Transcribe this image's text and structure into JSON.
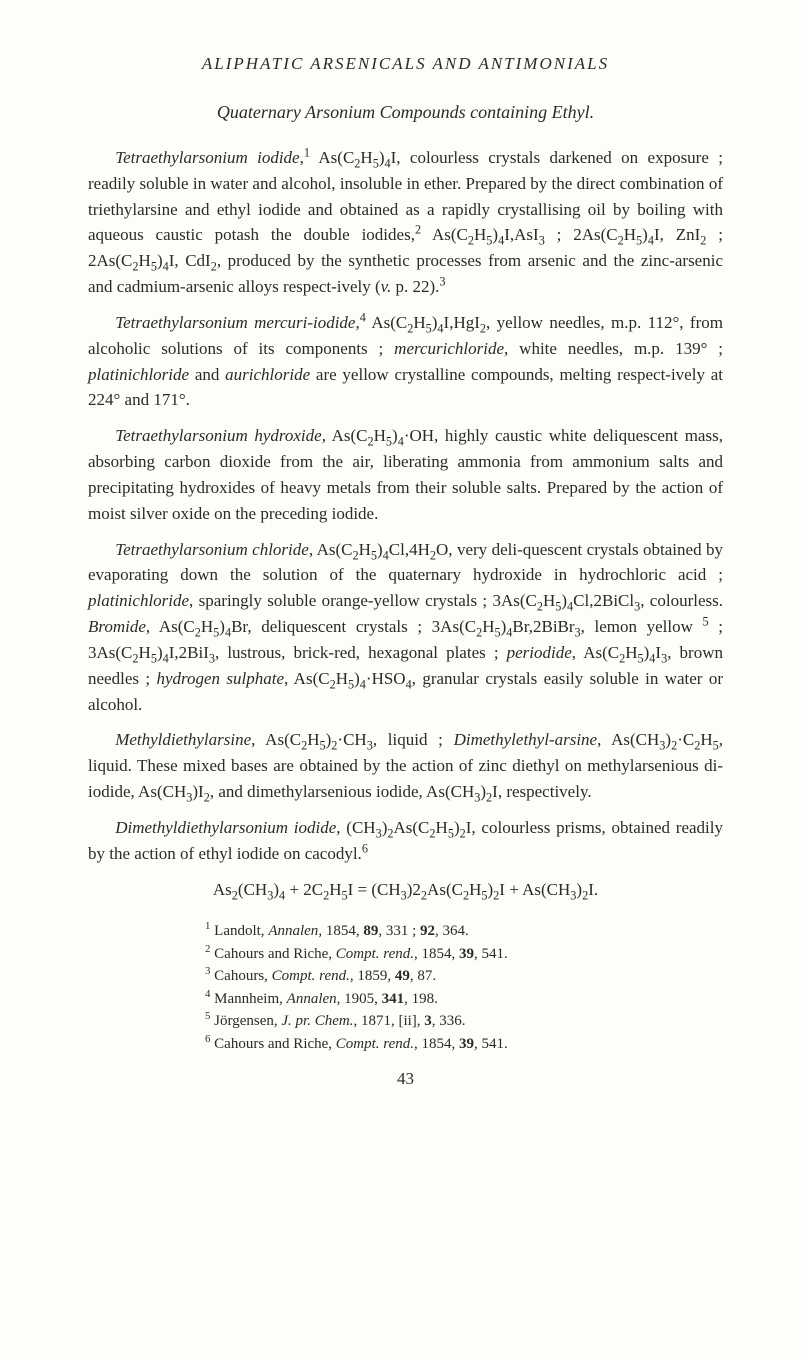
{
  "running_head": "ALIPHATIC ARSENICALS AND ANTIMONIALS",
  "section_head": "Quaternary Arsonium Compounds containing Ethyl.",
  "paragraphs": {
    "p1": "<span class=\"it\">Tetraethylarsonium iodide</span>,<sup>1</sup> As(C<sub>2</sub>H<sub>5</sub>)<sub>4</sub>I, colourless crystals darkened on exposure ; readily soluble in water and alcohol, insoluble in ether. Prepared by the direct combination of triethylarsine and ethyl iodide and obtained as a rapidly crystallising oil by boiling with aqueous caustic potash the double iodides,<sup>2</sup> As(C<sub>2</sub>H<sub>5</sub>)<sub>4</sub>I,AsI<sub>3</sub> ; 2As(C<sub>2</sub>H<sub>5</sub>)<sub>4</sub>I, ZnI<sub>2</sub> ; 2As(C<sub>2</sub>H<sub>5</sub>)<sub>4</sub>I, CdI<sub>2</sub>, produced by the synthetic processes from arsenic and the zinc-arsenic and cadmium-arsenic alloys respect-ively (<span class=\"it\">v.</span> p. 22).<sup>3</sup>",
    "p2": "<span class=\"it\">Tetraethylarsonium mercuri-iodide</span>,<sup>4</sup> As(C<sub>2</sub>H<sub>5</sub>)<sub>4</sub>I,HgI<sub>2</sub>, yellow needles, m.p. 112°, from alcoholic solutions of its components ; <span class=\"it\">mercurichloride</span>, white needles, m.p. 139° ; <span class=\"it\">platinichloride</span> and <span class=\"it\">aurichloride</span> are yellow crystalline compounds, melting respect-ively at 224° and 171°.",
    "p3": "<span class=\"it\">Tetraethylarsonium hydroxide</span>, As(C<sub>2</sub>H<sub>5</sub>)<sub>4</sub>·OH, highly caustic white deliquescent mass, absorbing carbon dioxide from the air, liberating ammonia from ammonium salts and precipitating hydroxides of heavy metals from their soluble salts. Prepared by the action of moist silver oxide on the preceding iodide.",
    "p4": "<span class=\"it\">Tetraethylarsonium chloride</span>, As(C<sub>2</sub>H<sub>5</sub>)<sub>4</sub>Cl,4H<sub>2</sub>O, very deli-quescent crystals obtained by evaporating down the solution of the quaternary hydroxide in hydrochloric acid ; <span class=\"it\">platinichloride</span>, sparingly soluble orange-yellow crystals ; 3As(C<sub>2</sub>H<sub>5</sub>)<sub>4</sub>Cl,2BiCl<sub>3</sub>, colourless. <span class=\"it\">Bromide</span>, As(C<sub>2</sub>H<sub>5</sub>)<sub>4</sub>Br, deliquescent crystals ; 3As(C<sub>2</sub>H<sub>5</sub>)<sub>4</sub>Br,2BiBr<sub>3</sub>, lemon yellow <sup>5</sup> ; 3As(C<sub>2</sub>H<sub>5</sub>)<sub>4</sub>I,2BiI<sub>3</sub>, lustrous, brick-red, hexagonal plates ; <span class=\"it\">periodide</span>, As(C<sub>2</sub>H<sub>5</sub>)<sub>4</sub>I<sub>3</sub>, brown needles ; <span class=\"it\">hydrogen sulphate</span>, As(C<sub>2</sub>H<sub>5</sub>)<sub>4</sub>·HSO<sub>4</sub>, granular crystals easily soluble in water or alcohol.",
    "p5": "<span class=\"it\">Methyldiethylarsine</span>, As(C<sub>2</sub>H<sub>5</sub>)<sub>2</sub>·CH<sub>3</sub>, liquid ; <span class=\"it\">Dimethylethyl-arsine</span>, As(CH<sub>3</sub>)<sub>2</sub>·C<sub>2</sub>H<sub>5</sub>, liquid. These mixed bases are obtained by the action of zinc diethyl on methylarsenious di-iodide, As(CH<sub>3</sub>)I<sub>2</sub>, and dimethylarsenious iodide, As(CH<sub>3</sub>)<sub>2</sub>I, respectively.",
    "p6": "<span class=\"it\">Dimethyldiethylarsonium iodide</span>, (CH<sub>3</sub>)<sub>2</sub>As(C<sub>2</sub>H<sub>5</sub>)<sub>2</sub>I, colourless prisms, obtained readily by the action of ethyl iodide on cacodyl.<sup>6</sup>",
    "eq": "As<sub>2</sub>(CH<sub>3</sub>)<sub>4</sub> + 2C<sub>2</sub>H<sub>5</sub>I = (CH<sub>3</sub>)2<sub>2</sub>As(C<sub>2</sub>H<sub>5</sub>)<sub>2</sub>I + As(CH<sub>3</sub>)<sub>2</sub>I."
  },
  "refs": {
    "r1": "<sup>1</sup> Landolt, <span class=\"it\">Annalen</span>, 1854, <span class=\"bf\">89</span>, 331 ; <span class=\"bf\">92</span>, 364.",
    "r2": "<sup>2</sup> Cahours and Riche, <span class=\"it\">Compt. rend.</span>, 1854, <span class=\"bf\">39</span>, 541.",
    "r3": "<sup>3</sup> Cahours, <span class=\"it\">Compt. rend.</span>, 1859, <span class=\"bf\">49</span>, 87.",
    "r4": "<sup>4</sup> Mannheim, <span class=\"it\">Annalen</span>, 1905, <span class=\"bf\">341</span>, 198.",
    "r5": "<sup>5</sup> Jörgensen, <span class=\"it\">J. pr. Chem.</span>, 1871, [ii], <span class=\"bf\">3</span>, 336.",
    "r6": "<sup>6</sup> Cahours and Riche, <span class=\"it\">Compt. rend.</span>, 1854, <span class=\"bf\">39</span>, 541."
  },
  "page_number": "43"
}
